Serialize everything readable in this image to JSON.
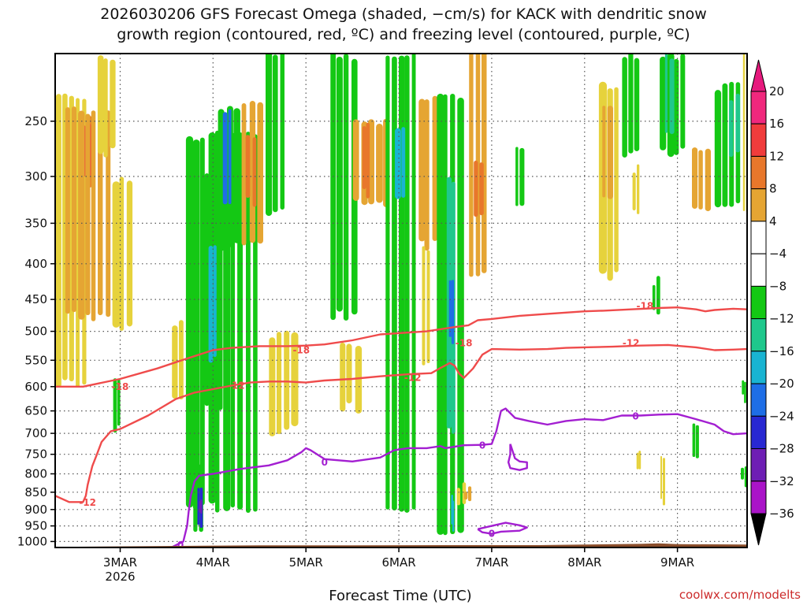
{
  "chart_data": {
    "type": "heatmap",
    "title_line1": "2026030206 GFS Forecast Omega (shaded, −cm/s) for KACK with dendritic snow",
    "title_line2": "growth region (contoured, red, ºC) and freezing level (contoured, purple, ºC)",
    "xlabel": "Forecast Time (UTC)",
    "ylabel": "",
    "credit": "coolwx.com/modelts",
    "x_range_days": [
      2.3,
      9.75
    ],
    "x_ticks": [
      {
        "day": 3,
        "label": "3MAR",
        "sub": "2026"
      },
      {
        "day": 4,
        "label": "4MAR",
        "sub": ""
      },
      {
        "day": 5,
        "label": "5MAR",
        "sub": ""
      },
      {
        "day": 6,
        "label": "6MAR",
        "sub": ""
      },
      {
        "day": 7,
        "label": "7MAR",
        "sub": ""
      },
      {
        "day": 8,
        "label": "8MAR",
        "sub": ""
      },
      {
        "day": 9,
        "label": "9MAR",
        "sub": ""
      }
    ],
    "y_ticks": [
      {
        "p": 250,
        "label": "250"
      },
      {
        "p": 300,
        "label": "300"
      },
      {
        "p": 350,
        "label": "350"
      },
      {
        "p": 400,
        "label": "400"
      },
      {
        "p": 450,
        "label": "450"
      },
      {
        "p": 500,
        "label": "500"
      },
      {
        "p": 550,
        "label": "550"
      },
      {
        "p": 600,
        "label": "600"
      },
      {
        "p": 650,
        "label": "650"
      },
      {
        "p": 700,
        "label": "700"
      },
      {
        "p": 750,
        "label": "750"
      },
      {
        "p": 800,
        "label": "800"
      },
      {
        "p": 850,
        "label": "850"
      },
      {
        "p": 900,
        "label": "900"
      },
      {
        "p": 950,
        "label": "950"
      },
      {
        "p": 1000,
        "label": "1000"
      }
    ],
    "y_range_hpa": [
      200,
      1020
    ],
    "colorbar": {
      "levels": [
        {
          "label": "20",
          "color": "#f0287d"
        },
        {
          "label": "16",
          "color": "#f03c3c"
        },
        {
          "label": "12",
          "color": "#e8772b"
        },
        {
          "label": "8",
          "color": "#e5a533"
        },
        {
          "label": "4",
          "color": "#e6d23c"
        },
        {
          "label": "−4",
          "color": "#ffffff"
        },
        {
          "label": "−8",
          "color": "#14c814"
        },
        {
          "label": "−12",
          "color": "#1fc88c"
        },
        {
          "label": "−16",
          "color": "#19b4d2"
        },
        {
          "label": "−20",
          "color": "#1e6ee6"
        },
        {
          "label": "−24",
          "color": "#2828d2"
        },
        {
          "label": "−28",
          "color": "#6e1eb4"
        },
        {
          "label": "−32",
          "color": "#aa14c8"
        },
        {
          "label": "−36",
          "color": "#a8a8a8"
        }
      ],
      "top_cap": "#e6197d",
      "bottom_cap": "#000000"
    },
    "omega_cells": [
      {
        "d0": 2.3,
        "d1": 2.65,
        "p0": 230,
        "p1": 600,
        "v": 6
      },
      {
        "d0": 2.55,
        "d1": 2.72,
        "p0": 240,
        "p1": 310,
        "v": 14
      },
      {
        "d0": 2.58,
        "d1": 2.68,
        "p0": 250,
        "p1": 300,
        "v": 18
      },
      {
        "d0": 2.4,
        "d1": 2.9,
        "p0": 240,
        "p1": 480,
        "v": 8
      },
      {
        "d0": 2.75,
        "d1": 2.95,
        "p0": 200,
        "p1": 280,
        "v": 6
      },
      {
        "d0": 2.9,
        "d1": 3.15,
        "p0": 300,
        "p1": 500,
        "v": 5
      },
      {
        "d0": 2.92,
        "d1": 3.0,
        "p0": 590,
        "p1": 700,
        "v": -7
      },
      {
        "d0": 3.7,
        "d1": 4.5,
        "p0": 260,
        "p1": 900,
        "v": -6
      },
      {
        "d0": 3.9,
        "d1": 4.1,
        "p0": 300,
        "p1": 650,
        "v": -11
      },
      {
        "d0": 3.95,
        "d1": 4.05,
        "p0": 380,
        "p1": 550,
        "v": -17
      },
      {
        "d0": 3.78,
        "d1": 3.9,
        "p0": 780,
        "p1": 990,
        "v": -9
      },
      {
        "d0": 3.82,
        "d1": 3.88,
        "p0": 820,
        "p1": 960,
        "v": -24
      },
      {
        "d0": 3.84,
        "d1": 3.87,
        "p0": 860,
        "p1": 930,
        "v": -30
      },
      {
        "d0": 4.3,
        "d1": 4.55,
        "p0": 230,
        "p1": 380,
        "v": 11
      },
      {
        "d0": 4.35,
        "d1": 4.48,
        "p0": 260,
        "p1": 330,
        "v": 15
      },
      {
        "d0": 4.05,
        "d1": 4.3,
        "p0": 240,
        "p1": 380,
        "v": -8
      },
      {
        "d0": 4.1,
        "d1": 4.2,
        "p0": 240,
        "p1": 330,
        "v": -21
      },
      {
        "d0": 4.55,
        "d1": 4.8,
        "p0": 200,
        "p1": 340,
        "v": -7
      },
      {
        "d0": 3.55,
        "d1": 3.7,
        "p0": 480,
        "p1": 620,
        "v": 6
      },
      {
        "d0": 4.6,
        "d1": 4.9,
        "p0": 500,
        "p1": 700,
        "v": 5
      },
      {
        "d0": 5.25,
        "d1": 5.55,
        "p0": 200,
        "p1": 480,
        "v": -7
      },
      {
        "d0": 5.5,
        "d1": 5.9,
        "p0": 250,
        "p1": 330,
        "v": 11
      },
      {
        "d0": 5.6,
        "d1": 5.68,
        "p0": 250,
        "p1": 320,
        "v": 15
      },
      {
        "d0": 5.35,
        "d1": 5.6,
        "p0": 520,
        "p1": 650,
        "v": 6
      },
      {
        "d0": 5.85,
        "d1": 6.2,
        "p0": 200,
        "p1": 900,
        "v": -7
      },
      {
        "d0": 5.95,
        "d1": 6.1,
        "p0": 250,
        "p1": 330,
        "v": -16
      },
      {
        "d0": 6.2,
        "d1": 6.5,
        "p0": 230,
        "p1": 380,
        "v": 9
      },
      {
        "d0": 6.25,
        "d1": 6.35,
        "p0": 380,
        "p1": 560,
        "v": 5
      },
      {
        "d0": 6.4,
        "d1": 6.7,
        "p0": 230,
        "p1": 980,
        "v": -7
      },
      {
        "d0": 6.5,
        "d1": 6.62,
        "p0": 300,
        "p1": 700,
        "v": -13
      },
      {
        "d0": 6.53,
        "d1": 6.6,
        "p0": 420,
        "p1": 520,
        "v": -21
      },
      {
        "d0": 6.55,
        "d1": 6.6,
        "p0": 860,
        "p1": 960,
        "v": -16
      },
      {
        "d0": 6.75,
        "d1": 6.95,
        "p0": 200,
        "p1": 420,
        "v": 8
      },
      {
        "d0": 6.8,
        "d1": 6.9,
        "p0": 280,
        "p1": 340,
        "v": 13
      },
      {
        "d0": 6.62,
        "d1": 6.72,
        "p0": 820,
        "p1": 900,
        "v": 6
      },
      {
        "d0": 6.7,
        "d1": 6.78,
        "p0": 840,
        "p1": 880,
        "v": 10
      },
      {
        "d0": 7.25,
        "d1": 7.35,
        "p0": 270,
        "p1": 330,
        "v": -7
      },
      {
        "d0": 8.15,
        "d1": 8.4,
        "p0": 220,
        "p1": 420,
        "v": 6
      },
      {
        "d0": 8.18,
        "d1": 8.3,
        "p0": 240,
        "p1": 320,
        "v": 10
      },
      {
        "d0": 8.4,
        "d1": 8.6,
        "p0": 200,
        "p1": 280,
        "v": -7
      },
      {
        "d0": 8.5,
        "d1": 8.6,
        "p0": 290,
        "p1": 340,
        "v": 6
      },
      {
        "d0": 8.8,
        "d1": 9.1,
        "p0": 200,
        "p1": 280,
        "v": -8
      },
      {
        "d0": 8.85,
        "d1": 8.95,
        "p0": 200,
        "p1": 260,
        "v": -13
      },
      {
        "d0": 9.15,
        "d1": 9.35,
        "p0": 270,
        "p1": 340,
        "v": 8
      },
      {
        "d0": 9.4,
        "d1": 9.7,
        "p0": 220,
        "p1": 330,
        "v": -7
      },
      {
        "d0": 9.55,
        "d1": 9.7,
        "p0": 230,
        "p1": 280,
        "v": -13
      },
      {
        "d0": 9.7,
        "d1": 9.75,
        "p0": 200,
        "p1": 340,
        "v": 6
      },
      {
        "d0": 8.72,
        "d1": 8.82,
        "p0": 420,
        "p1": 470,
        "v": -7
      },
      {
        "d0": 9.15,
        "d1": 9.22,
        "p0": 680,
        "p1": 770,
        "v": -11
      },
      {
        "d0": 8.55,
        "d1": 8.6,
        "p0": 730,
        "p1": 800,
        "v": 5
      },
      {
        "d0": 8.8,
        "d1": 8.85,
        "p0": 760,
        "p1": 880,
        "v": 6
      },
      {
        "d0": 9.68,
        "d1": 9.75,
        "p0": 580,
        "p1": 630,
        "v": -7
      },
      {
        "d0": 9.68,
        "d1": 9.75,
        "p0": 770,
        "p1": 830,
        "v": -7
      }
    ],
    "contours": [
      {
        "name": "dgz_-18_low",
        "color": "#ef4b4b",
        "label": "-18",
        "pts": [
          [
            2.3,
            600
          ],
          [
            2.6,
            600
          ],
          [
            3.0,
            585
          ],
          [
            3.4,
            565
          ],
          [
            3.7,
            548
          ],
          [
            4.0,
            532
          ],
          [
            4.2,
            528
          ],
          [
            4.5,
            525
          ],
          [
            4.8,
            525
          ],
          [
            5.0,
            524
          ],
          [
            5.2,
            522
          ],
          [
            5.5,
            515
          ],
          [
            5.8,
            505
          ],
          [
            6.0,
            503
          ],
          [
            6.3,
            500
          ],
          [
            6.6,
            493
          ],
          [
            6.75,
            490
          ],
          [
            6.85,
            482
          ],
          [
            7.0,
            480
          ],
          [
            7.3,
            475
          ],
          [
            7.6,
            472
          ],
          [
            8.0,
            468
          ],
          [
            8.2,
            467
          ],
          [
            8.5,
            465
          ],
          [
            8.8,
            463
          ],
          [
            9.0,
            462
          ],
          [
            9.2,
            465
          ],
          [
            9.3,
            468
          ],
          [
            9.4,
            466
          ],
          [
            9.6,
            464
          ],
          [
            9.75,
            465
          ]
        ],
        "labels": [
          {
            "d": 3.0,
            "p": 600
          },
          {
            "d": 4.95,
            "p": 532
          },
          {
            "d": 6.7,
            "p": 520
          },
          {
            "d": 8.65,
            "p": 460
          }
        ]
      },
      {
        "name": "dgz_-12",
        "color": "#ef4b4b",
        "label": "-12",
        "pts": [
          [
            2.3,
            860
          ],
          [
            2.45,
            878
          ],
          [
            2.6,
            878
          ],
          [
            2.63,
            860
          ],
          [
            2.65,
            830
          ],
          [
            2.7,
            780
          ],
          [
            2.75,
            750
          ],
          [
            2.8,
            720
          ],
          [
            2.9,
            695
          ],
          [
            3.0,
            690
          ],
          [
            3.3,
            660
          ],
          [
            3.6,
            625
          ],
          [
            3.8,
            612
          ],
          [
            4.0,
            605
          ],
          [
            4.2,
            598
          ],
          [
            4.4,
            592
          ],
          [
            4.6,
            590
          ],
          [
            4.8,
            590
          ],
          [
            5.0,
            592
          ],
          [
            5.2,
            588
          ],
          [
            5.5,
            585
          ],
          [
            5.8,
            580
          ],
          [
            6.1,
            576
          ],
          [
            6.35,
            574
          ],
          [
            6.45,
            564
          ],
          [
            6.55,
            555
          ],
          [
            6.6,
            560
          ],
          [
            6.65,
            575
          ],
          [
            6.7,
            583
          ],
          [
            6.8,
            565
          ],
          [
            6.9,
            540
          ],
          [
            7.0,
            530
          ],
          [
            7.3,
            531
          ],
          [
            7.6,
            530
          ],
          [
            7.8,
            528
          ],
          [
            8.0,
            527
          ],
          [
            8.3,
            526
          ],
          [
            8.6,
            524
          ],
          [
            8.9,
            523
          ],
          [
            9.2,
            527
          ],
          [
            9.4,
            532
          ],
          [
            9.6,
            531
          ],
          [
            9.75,
            530
          ]
        ],
        "labels": [
          {
            "d": 2.65,
            "p": 880
          },
          {
            "d": 4.25,
            "p": 598
          },
          {
            "d": 6.15,
            "p": 583
          },
          {
            "d": 8.5,
            "p": 520
          }
        ]
      },
      {
        "name": "freezing_0",
        "color": "#a31fd1",
        "label": "0",
        "pts": [
          [
            3.55,
            1020
          ],
          [
            3.68,
            1000
          ],
          [
            3.72,
            950
          ],
          [
            3.74,
            900
          ],
          [
            3.76,
            860
          ],
          [
            3.8,
            820
          ],
          [
            3.85,
            805
          ],
          [
            4.0,
            800
          ],
          [
            4.3,
            787
          ],
          [
            4.6,
            778
          ],
          [
            4.8,
            765
          ],
          [
            4.95,
            745
          ],
          [
            5.0,
            735
          ],
          [
            5.05,
            740
          ],
          [
            5.2,
            762
          ],
          [
            5.5,
            768
          ],
          [
            5.8,
            758
          ],
          [
            5.95,
            740
          ],
          [
            6.1,
            735
          ],
          [
            6.3,
            735
          ],
          [
            6.45,
            730
          ],
          [
            6.5,
            735
          ],
          [
            6.7,
            728
          ],
          [
            6.9,
            727
          ],
          [
            7.0,
            725
          ],
          [
            7.05,
            695
          ],
          [
            7.1,
            650
          ],
          [
            7.15,
            645
          ],
          [
            7.25,
            665
          ],
          [
            7.4,
            672
          ],
          [
            7.6,
            680
          ],
          [
            7.8,
            672
          ],
          [
            8.0,
            668
          ],
          [
            8.2,
            670
          ],
          [
            8.4,
            660
          ],
          [
            8.6,
            660
          ],
          [
            8.8,
            658
          ],
          [
            9.0,
            657
          ],
          [
            9.2,
            668
          ],
          [
            9.4,
            680
          ],
          [
            9.5,
            695
          ],
          [
            9.6,
            702
          ],
          [
            9.75,
            700
          ]
        ],
        "labels": [
          {
            "d": 3.65,
            "p": 1012
          },
          {
            "d": 5.2,
            "p": 770
          },
          {
            "d": 6.9,
            "p": 729
          },
          {
            "d": 8.55,
            "p": 662
          }
        ]
      },
      {
        "name": "freezing_0_blob",
        "color": "#a31fd1",
        "label": "0",
        "pts": [
          [
            6.85,
            960
          ],
          [
            7.0,
            950
          ],
          [
            7.15,
            940
          ],
          [
            7.3,
            948
          ],
          [
            7.38,
            955
          ],
          [
            7.3,
            965
          ],
          [
            7.1,
            968
          ],
          [
            7.0,
            975
          ],
          [
            6.9,
            970
          ],
          [
            6.85,
            960
          ]
        ],
        "labels": [
          {
            "d": 7.0,
            "p": 975
          }
        ]
      },
      {
        "name": "freezing_0_blob2",
        "color": "#a31fd1",
        "label": "",
        "pts": [
          [
            7.2,
            725
          ],
          [
            7.25,
            760
          ],
          [
            7.3,
            768
          ],
          [
            7.38,
            770
          ],
          [
            7.38,
            785
          ],
          [
            7.3,
            790
          ],
          [
            7.2,
            785
          ],
          [
            7.18,
            770
          ],
          [
            7.2,
            750
          ],
          [
            7.2,
            725
          ]
        ],
        "labels": []
      }
    ]
  }
}
